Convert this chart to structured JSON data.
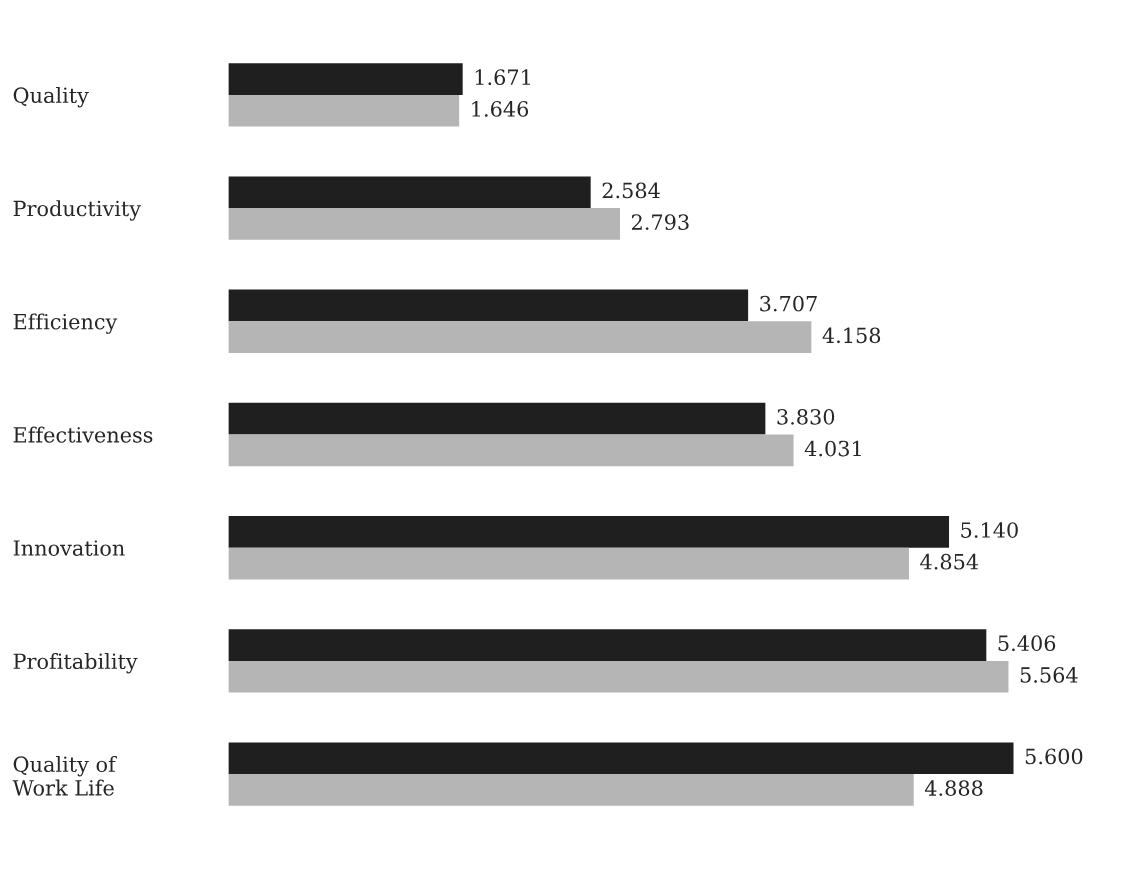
{
  "chart_data": {
    "type": "bar",
    "orientation": "horizontal",
    "categories": [
      "Quality",
      "Productivity",
      "Efficiency",
      "Effectiveness",
      "Innovation",
      "Profitability",
      "Quality of\nWork Life"
    ],
    "series": [
      {
        "color": "#1f1f1f",
        "values": [
          1.671,
          2.584,
          3.707,
          3.83,
          5.14,
          5.406,
          5.6
        ],
        "value_labels": [
          "1.671",
          "2.584",
          "3.707",
          "3.830",
          "5.140",
          "5.406",
          "5.600"
        ]
      },
      {
        "color": "#b5b5b5",
        "values": [
          1.646,
          2.793,
          4.158,
          4.031,
          4.854,
          5.564,
          4.888
        ],
        "value_labels": [
          "1.646",
          "2.793",
          "4.158",
          "4.031",
          "4.854",
          "5.564",
          "4.888"
        ]
      }
    ],
    "tick_labels": "y",
    "grid": false,
    "legend": false
  }
}
